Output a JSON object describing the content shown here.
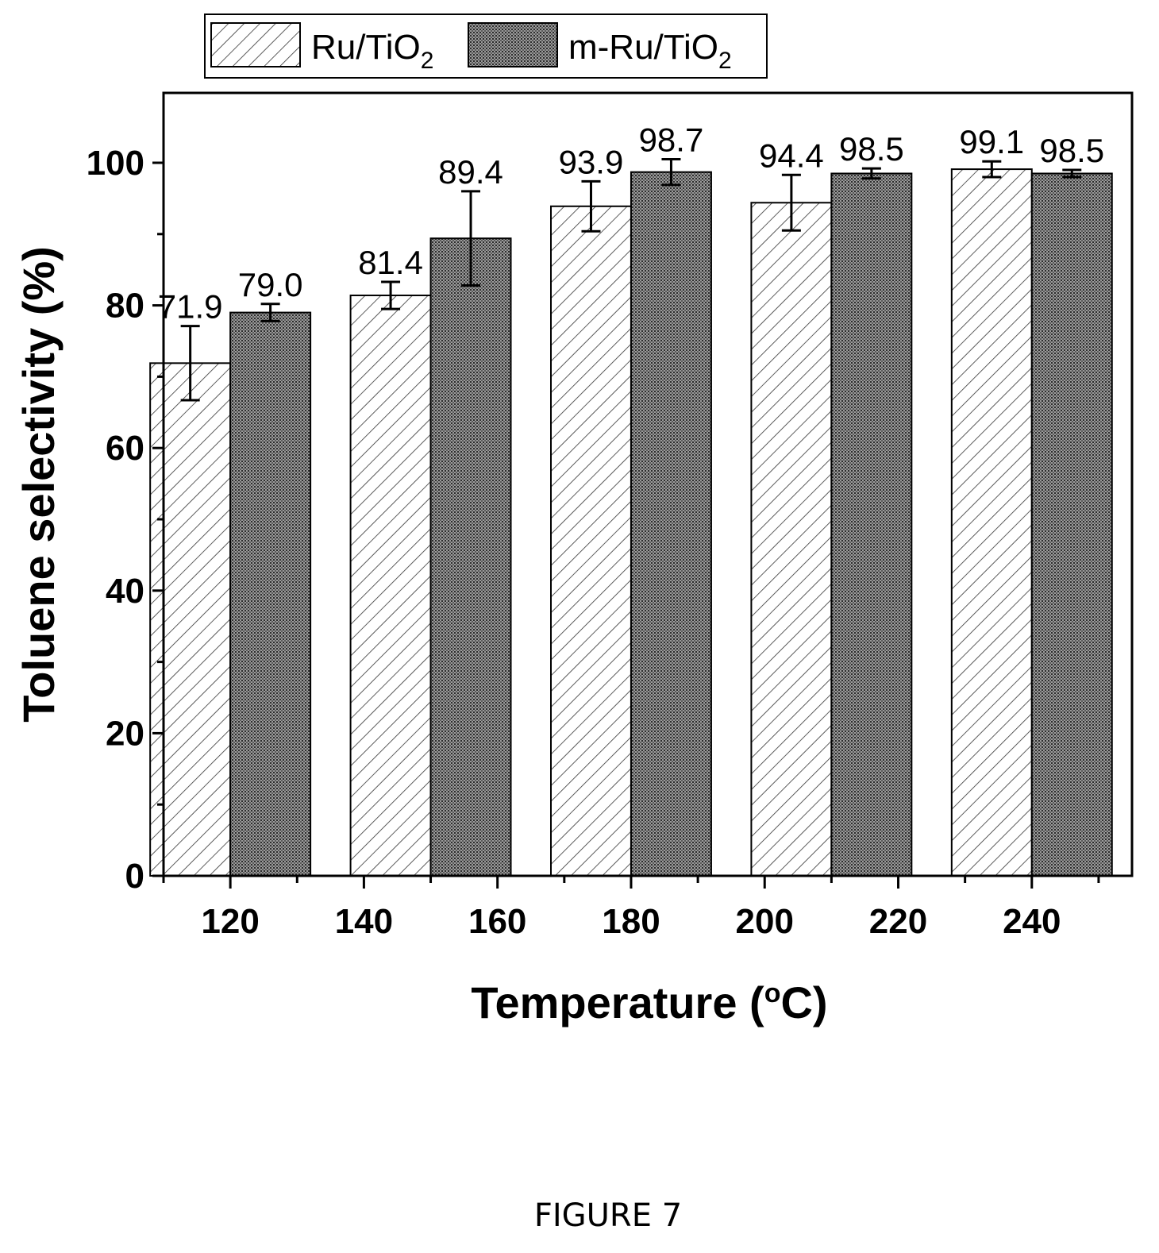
{
  "figure_caption": "FIGURE 7",
  "chart_data": {
    "type": "bar",
    "xlabel": "Temperature (°C)",
    "xlabel_main": "Temperature (",
    "xlabel_sup": "o",
    "xlabel_end": "C)",
    "ylabel": "Toluene selectivity (%)",
    "ylim": [
      0,
      110
    ],
    "yticks": [
      0,
      20,
      40,
      60,
      80,
      100
    ],
    "xlim": [
      110,
      255
    ],
    "xticks": [
      120,
      140,
      160,
      180,
      200,
      220,
      240
    ],
    "grid": false,
    "legend_position": "top",
    "bar_groups": [
      "120",
      "140",
      "160",
      "180",
      "200",
      "220",
      "240"
    ],
    "series": [
      {
        "name": "Ru/TiO2",
        "name_main": "Ru/TiO",
        "name_sub": "2",
        "pattern": "diagonal-hatch",
        "x_centers": [
          114,
          144,
          174,
          204,
          234
        ],
        "values": [
          71.9,
          81.4,
          93.9,
          94.4,
          99.1
        ],
        "labels": [
          "71.9",
          "81.4",
          "93.9",
          "94.4",
          "99.1"
        ],
        "error": [
          5.2,
          1.9,
          3.5,
          3.9,
          1.1
        ]
      },
      {
        "name": "m-Ru/TiO2",
        "name_main": "m-Ru/TiO",
        "name_sub": "2",
        "pattern": "dense-dots",
        "x_centers": [
          126,
          156,
          186,
          216,
          246
        ],
        "values": [
          79.0,
          89.4,
          98.7,
          98.5,
          98.5
        ],
        "labels": [
          "79.0",
          "89.4",
          "98.7",
          "98.5",
          "98.5"
        ],
        "error": [
          1.2,
          6.6,
          1.8,
          0.7,
          0.5
        ]
      }
    ]
  }
}
